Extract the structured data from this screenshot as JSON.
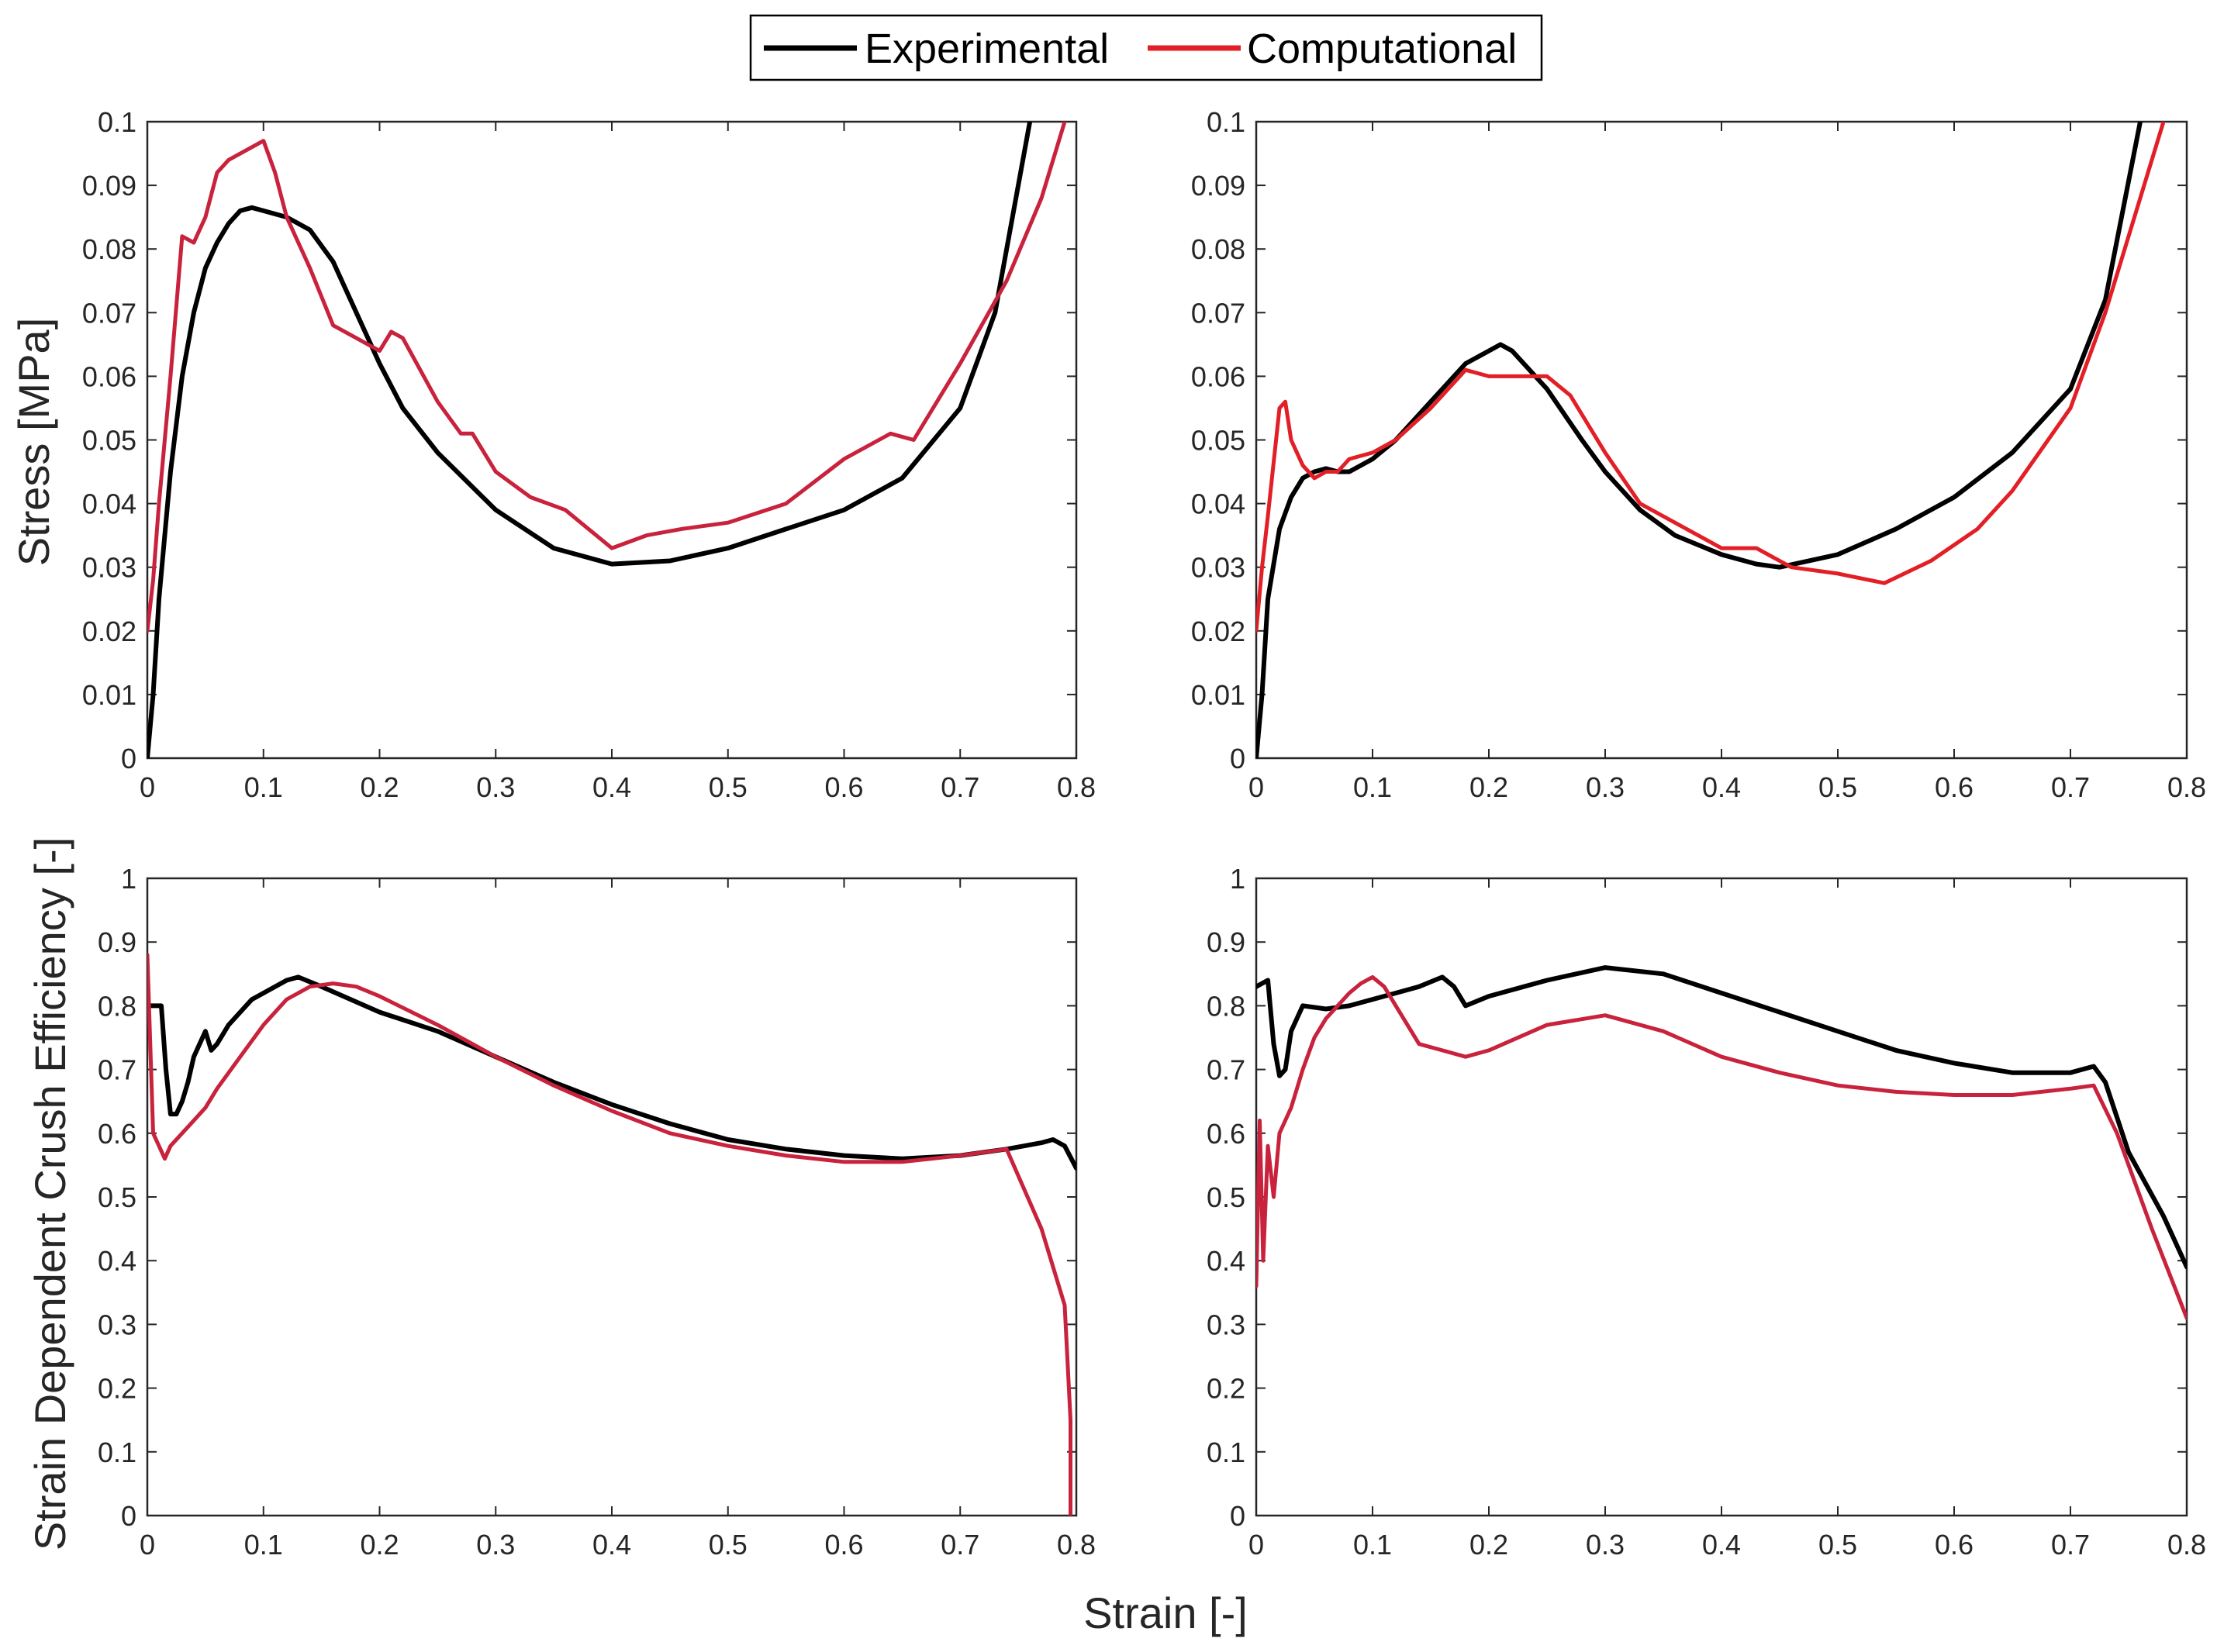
{
  "legend": {
    "placement": "top-center",
    "items": [
      {
        "label": "Experimental",
        "color": "#000000"
      },
      {
        "label": "Computational",
        "color": "#e21f26"
      }
    ]
  },
  "labels": {
    "ylabel_top": "Stress [MPa]",
    "ylabel_bottom": "Strain Dependent Crush Efficiency [-]",
    "xlabel": "Strain [-]"
  },
  "chart_data": [
    {
      "type": "line",
      "panel": "top-left",
      "xlim": [
        0,
        0.8
      ],
      "ylim": [
        0,
        0.1
      ],
      "xticks": [
        "0",
        "0.1",
        "0.2",
        "0.3",
        "0.4",
        "0.5",
        "0.6",
        "0.7",
        "0.8"
      ],
      "yticks": [
        "0",
        "0.01",
        "0.02",
        "0.03",
        "0.04",
        "0.05",
        "0.06",
        "0.07",
        "0.08",
        "0.09",
        "0.1"
      ],
      "series": [
        {
          "name": "Experimental",
          "color": "#000000",
          "x": [
            0,
            0.005,
            0.01,
            0.02,
            0.03,
            0.04,
            0.05,
            0.06,
            0.07,
            0.08,
            0.09,
            0.1,
            0.12,
            0.14,
            0.16,
            0.18,
            0.2,
            0.22,
            0.25,
            0.3,
            0.35,
            0.4,
            0.45,
            0.5,
            0.55,
            0.6,
            0.65,
            0.7,
            0.73,
            0.76
          ],
          "y": [
            0,
            0.01,
            0.025,
            0.045,
            0.06,
            0.07,
            0.077,
            0.081,
            0.084,
            0.086,
            0.0865,
            0.086,
            0.085,
            0.083,
            0.078,
            0.07,
            0.062,
            0.055,
            0.048,
            0.039,
            0.033,
            0.0305,
            0.031,
            0.033,
            0.036,
            0.039,
            0.044,
            0.055,
            0.07,
            0.1
          ]
        },
        {
          "name": "Computational",
          "color": "#c8223c",
          "x": [
            0,
            0.005,
            0.01,
            0.02,
            0.03,
            0.04,
            0.05,
            0.06,
            0.07,
            0.08,
            0.09,
            0.1,
            0.11,
            0.12,
            0.14,
            0.16,
            0.18,
            0.2,
            0.21,
            0.22,
            0.25,
            0.27,
            0.28,
            0.3,
            0.33,
            0.36,
            0.4,
            0.43,
            0.46,
            0.5,
            0.55,
            0.6,
            0.64,
            0.66,
            0.7,
            0.74,
            0.77,
            0.79
          ],
          "y": [
            0.02,
            0.028,
            0.04,
            0.06,
            0.082,
            0.081,
            0.085,
            0.092,
            0.094,
            0.095,
            0.096,
            0.097,
            0.092,
            0.085,
            0.077,
            0.068,
            0.066,
            0.064,
            0.067,
            0.066,
            0.056,
            0.051,
            0.051,
            0.045,
            0.041,
            0.039,
            0.033,
            0.035,
            0.036,
            0.037,
            0.04,
            0.047,
            0.051,
            0.05,
            0.062,
            0.075,
            0.088,
            0.1
          ]
        }
      ]
    },
    {
      "type": "line",
      "panel": "top-right",
      "xlim": [
        0,
        0.8
      ],
      "ylim": [
        0,
        0.1
      ],
      "xticks": [
        "0",
        "0.1",
        "0.2",
        "0.3",
        "0.4",
        "0.5",
        "0.6",
        "0.7",
        "0.8"
      ],
      "yticks": [
        "0",
        "0.01",
        "0.02",
        "0.03",
        "0.04",
        "0.05",
        "0.06",
        "0.07",
        "0.08",
        "0.09",
        "0.1"
      ],
      "series": [
        {
          "name": "Experimental",
          "color": "#000000",
          "x": [
            0,
            0.005,
            0.01,
            0.02,
            0.03,
            0.04,
            0.05,
            0.06,
            0.07,
            0.08,
            0.1,
            0.12,
            0.15,
            0.18,
            0.2,
            0.21,
            0.22,
            0.25,
            0.28,
            0.3,
            0.33,
            0.36,
            0.4,
            0.43,
            0.45,
            0.5,
            0.55,
            0.6,
            0.65,
            0.7,
            0.73,
            0.76
          ],
          "y": [
            0,
            0.01,
            0.025,
            0.036,
            0.041,
            0.044,
            0.045,
            0.0455,
            0.045,
            0.045,
            0.047,
            0.05,
            0.056,
            0.062,
            0.064,
            0.065,
            0.064,
            0.058,
            0.05,
            0.045,
            0.039,
            0.035,
            0.032,
            0.0305,
            0.03,
            0.032,
            0.036,
            0.041,
            0.048,
            0.058,
            0.072,
            0.1
          ]
        },
        {
          "name": "Computational",
          "color": "#e21f26",
          "x": [
            0,
            0.005,
            0.01,
            0.02,
            0.025,
            0.03,
            0.04,
            0.05,
            0.06,
            0.07,
            0.08,
            0.1,
            0.12,
            0.15,
            0.18,
            0.2,
            0.22,
            0.25,
            0.27,
            0.3,
            0.33,
            0.36,
            0.4,
            0.43,
            0.46,
            0.5,
            0.54,
            0.58,
            0.62,
            0.65,
            0.7,
            0.73,
            0.76,
            0.78
          ],
          "y": [
            0.02,
            0.03,
            0.038,
            0.055,
            0.056,
            0.05,
            0.046,
            0.044,
            0.045,
            0.045,
            0.047,
            0.048,
            0.05,
            0.055,
            0.061,
            0.06,
            0.06,
            0.06,
            0.057,
            0.048,
            0.04,
            0.037,
            0.033,
            0.033,
            0.03,
            0.029,
            0.0275,
            0.031,
            0.036,
            0.042,
            0.055,
            0.07,
            0.088,
            0.1
          ]
        }
      ]
    },
    {
      "type": "line",
      "panel": "bottom-left",
      "xlim": [
        0,
        0.8
      ],
      "ylim": [
        0,
        1
      ],
      "xticks": [
        "0",
        "0.1",
        "0.2",
        "0.3",
        "0.4",
        "0.5",
        "0.6",
        "0.7",
        "0.8"
      ],
      "yticks": [
        "0",
        "0.1",
        "0.2",
        "0.3",
        "0.4",
        "0.5",
        "0.6",
        "0.7",
        "0.8",
        "0.9",
        "1"
      ],
      "series": [
        {
          "name": "Experimental",
          "color": "#000000",
          "x": [
            0.003,
            0.008,
            0.012,
            0.016,
            0.02,
            0.025,
            0.03,
            0.035,
            0.04,
            0.05,
            0.055,
            0.06,
            0.07,
            0.08,
            0.09,
            0.1,
            0.12,
            0.13,
            0.15,
            0.2,
            0.25,
            0.3,
            0.35,
            0.4,
            0.45,
            0.5,
            0.55,
            0.6,
            0.65,
            0.7,
            0.74,
            0.77,
            0.78,
            0.79,
            0.8
          ],
          "y": [
            0.8,
            0.8,
            0.8,
            0.7,
            0.63,
            0.63,
            0.65,
            0.68,
            0.72,
            0.76,
            0.73,
            0.74,
            0.77,
            0.79,
            0.81,
            0.82,
            0.84,
            0.845,
            0.83,
            0.79,
            0.76,
            0.72,
            0.68,
            0.645,
            0.615,
            0.59,
            0.575,
            0.565,
            0.56,
            0.565,
            0.575,
            0.585,
            0.59,
            0.58,
            0.545
          ]
        },
        {
          "name": "Computational",
          "color": "#c8223c",
          "x": [
            0,
            0.005,
            0.01,
            0.015,
            0.02,
            0.03,
            0.04,
            0.05,
            0.06,
            0.08,
            0.1,
            0.12,
            0.14,
            0.16,
            0.18,
            0.2,
            0.25,
            0.3,
            0.35,
            0.4,
            0.45,
            0.5,
            0.55,
            0.6,
            0.65,
            0.7,
            0.74,
            0.77,
            0.79,
            0.795,
            0.795
          ],
          "y": [
            0.88,
            0.6,
            0.58,
            0.56,
            0.58,
            0.6,
            0.62,
            0.64,
            0.67,
            0.72,
            0.77,
            0.81,
            0.83,
            0.835,
            0.83,
            0.815,
            0.77,
            0.72,
            0.675,
            0.635,
            0.6,
            0.58,
            0.565,
            0.555,
            0.555,
            0.565,
            0.575,
            0.45,
            0.33,
            0.15,
            0
          ]
        }
      ]
    },
    {
      "type": "line",
      "panel": "bottom-right",
      "xlim": [
        0,
        0.8
      ],
      "ylim": [
        0,
        1
      ],
      "xticks": [
        "0",
        "0.1",
        "0.2",
        "0.3",
        "0.4",
        "0.5",
        "0.6",
        "0.7",
        "0.8"
      ],
      "yticks": [
        "0",
        "0.1",
        "0.2",
        "0.3",
        "0.4",
        "0.5",
        "0.6",
        "0.7",
        "0.8",
        "0.9",
        "1"
      ],
      "series": [
        {
          "name": "Experimental",
          "color": "#000000",
          "x": [
            0,
            0.01,
            0.015,
            0.02,
            0.025,
            0.03,
            0.04,
            0.06,
            0.08,
            0.1,
            0.12,
            0.14,
            0.16,
            0.17,
            0.18,
            0.2,
            0.25,
            0.3,
            0.35,
            0.4,
            0.45,
            0.5,
            0.55,
            0.6,
            0.65,
            0.7,
            0.72,
            0.73,
            0.75,
            0.78,
            0.8
          ],
          "y": [
            0.83,
            0.84,
            0.74,
            0.69,
            0.7,
            0.76,
            0.8,
            0.795,
            0.8,
            0.81,
            0.82,
            0.83,
            0.845,
            0.83,
            0.8,
            0.815,
            0.84,
            0.86,
            0.85,
            0.82,
            0.79,
            0.76,
            0.73,
            0.71,
            0.695,
            0.695,
            0.705,
            0.68,
            0.57,
            0.47,
            0.39
          ]
        },
        {
          "name": "Computational",
          "color": "#c8223c",
          "x": [
            0,
            0.003,
            0.006,
            0.01,
            0.015,
            0.02,
            0.03,
            0.04,
            0.05,
            0.06,
            0.07,
            0.08,
            0.09,
            0.1,
            0.11,
            0.12,
            0.14,
            0.16,
            0.18,
            0.2,
            0.25,
            0.3,
            0.35,
            0.4,
            0.45,
            0.5,
            0.55,
            0.6,
            0.65,
            0.7,
            0.72,
            0.74,
            0.77,
            0.8
          ],
          "y": [
            0.36,
            0.62,
            0.4,
            0.58,
            0.5,
            0.6,
            0.64,
            0.7,
            0.75,
            0.78,
            0.8,
            0.82,
            0.835,
            0.845,
            0.83,
            0.8,
            0.74,
            0.73,
            0.72,
            0.73,
            0.77,
            0.785,
            0.76,
            0.72,
            0.695,
            0.675,
            0.665,
            0.66,
            0.66,
            0.67,
            0.675,
            0.6,
            0.45,
            0.31
          ]
        }
      ]
    }
  ]
}
